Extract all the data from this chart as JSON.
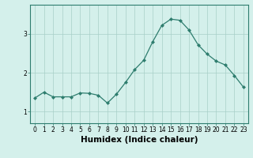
{
  "x": [
    0,
    1,
    2,
    3,
    4,
    5,
    6,
    7,
    8,
    9,
    10,
    11,
    12,
    13,
    14,
    15,
    16,
    17,
    18,
    19,
    20,
    21,
    22,
    23
  ],
  "y": [
    1.35,
    1.5,
    1.38,
    1.38,
    1.38,
    1.48,
    1.47,
    1.42,
    1.22,
    1.45,
    1.75,
    2.08,
    2.32,
    2.8,
    3.22,
    3.38,
    3.35,
    3.1,
    2.72,
    2.48,
    2.3,
    2.2,
    1.93,
    1.63
  ],
  "line_color": "#2e7d6e",
  "marker": "D",
  "marker_size": 2.0,
  "bg_color": "#d4f0eb",
  "grid_color": "#a8cfc8",
  "xlabel": "Humidex (Indice chaleur)",
  "xlim": [
    -0.5,
    23.5
  ],
  "ylim": [
    0.7,
    3.75
  ],
  "yticks": [
    1,
    2,
    3
  ],
  "xticks": [
    0,
    1,
    2,
    3,
    4,
    5,
    6,
    7,
    8,
    9,
    10,
    11,
    12,
    13,
    14,
    15,
    16,
    17,
    18,
    19,
    20,
    21,
    22,
    23
  ],
  "tick_fontsize": 5.5,
  "xlabel_fontsize": 7.5,
  "xlabel_fontweight": "bold"
}
